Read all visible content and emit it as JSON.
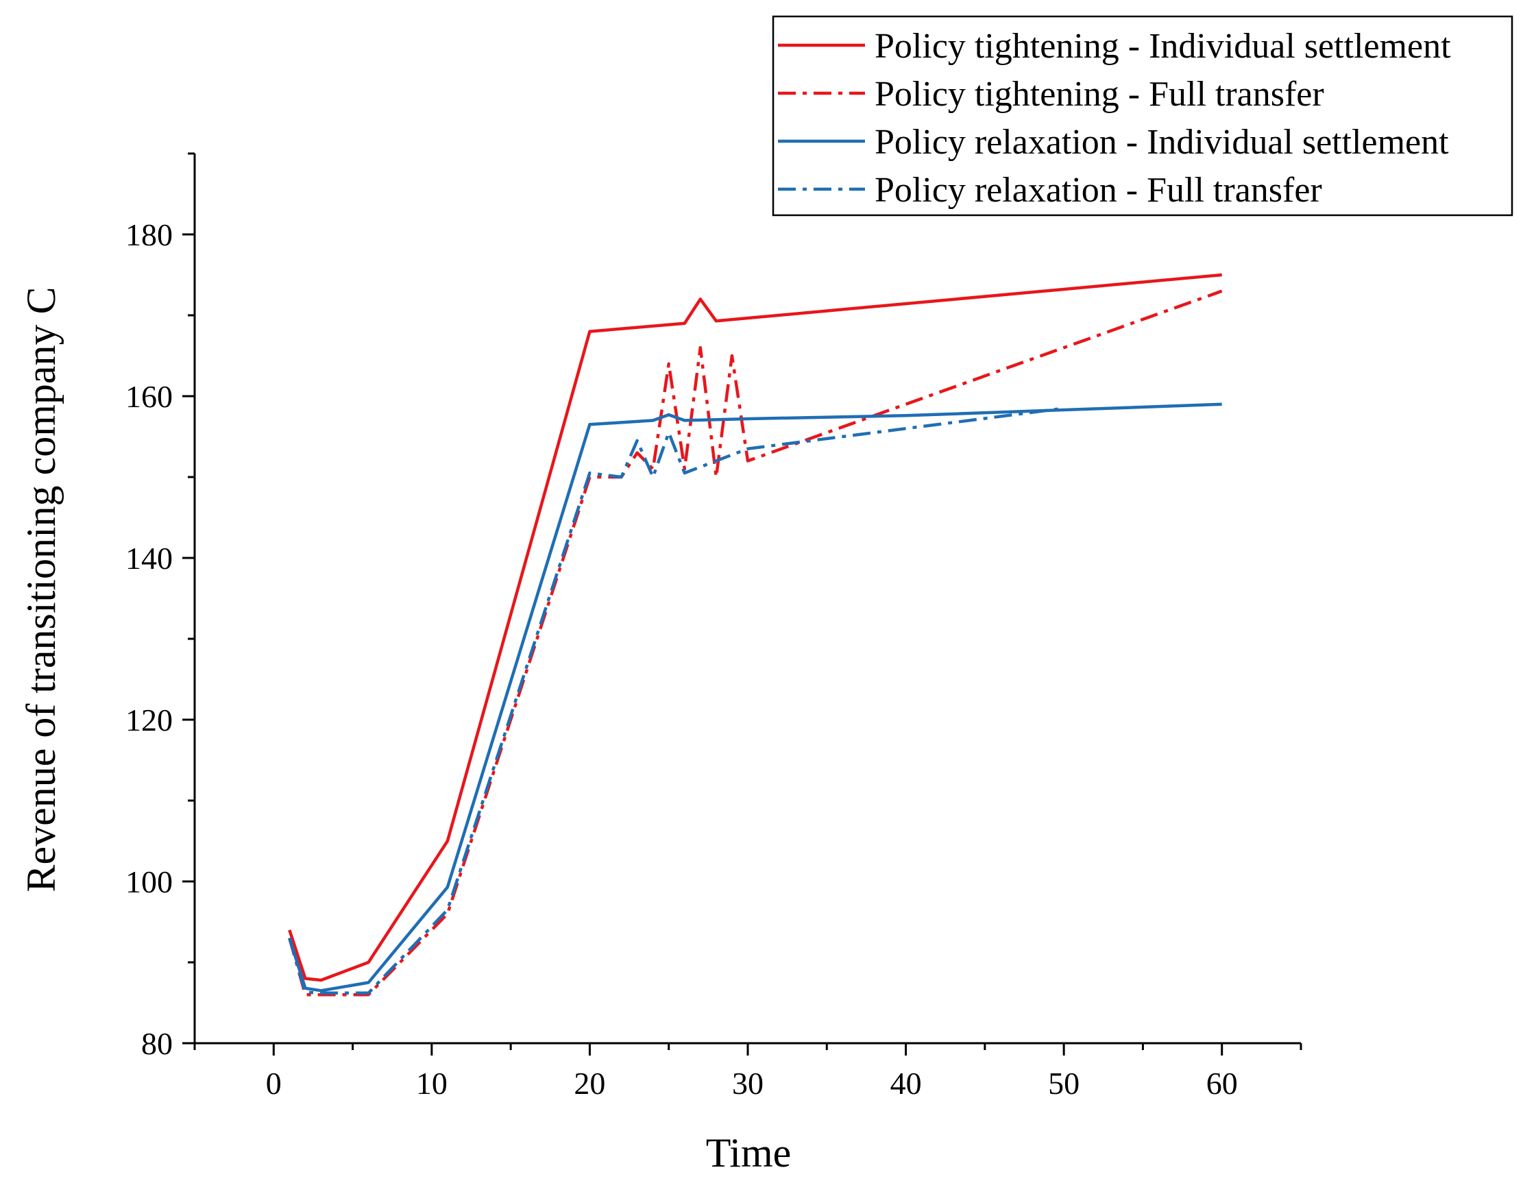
{
  "chart_data": {
    "type": "line",
    "title": "",
    "xlabel": "Time",
    "ylabel": "Revenue of transitioning company C",
    "xlim": [
      -5,
      65
    ],
    "ylim": [
      80,
      190
    ],
    "xticks": [
      0,
      10,
      20,
      30,
      40,
      50,
      60
    ],
    "xtick_labels": [
      "0",
      "10",
      "20",
      "30",
      "40",
      "50",
      "60"
    ],
    "yticks": [
      80,
      100,
      120,
      140,
      160,
      180
    ],
    "ytick_labels": [
      "80",
      "100",
      "120",
      "140",
      "160",
      "180"
    ],
    "grid": false,
    "legend_position": "top-right",
    "series": [
      {
        "name": "Policy tightening - Individual settlement",
        "color": "#e8161b",
        "style": "solid",
        "x": [
          1,
          2,
          3,
          6,
          11,
          20,
          26,
          27,
          28,
          60
        ],
        "y": [
          94,
          88,
          87.8,
          90,
          105,
          168,
          169,
          172,
          169.3,
          175
        ]
      },
      {
        "name": "Policy tightening - Full transfer",
        "color": "#e8161b",
        "style": "dashdot",
        "x": [
          1,
          2,
          3,
          6,
          11,
          20,
          21,
          22,
          23,
          24,
          25,
          26,
          27,
          28,
          29,
          30,
          60
        ],
        "y": [
          93,
          86,
          86,
          86,
          96,
          150,
          150,
          150,
          153,
          151,
          164,
          151,
          166,
          150,
          165,
          152,
          173
        ]
      },
      {
        "name": "Policy relaxation - Individual settlement",
        "color": "#1f6eb4",
        "style": "solid",
        "x": [
          1,
          2,
          3,
          6,
          11,
          20,
          24,
          25,
          26,
          30,
          40,
          60
        ],
        "y": [
          93,
          86.8,
          86.5,
          87.5,
          99.3,
          156.5,
          157,
          157.7,
          157,
          157.2,
          157.6,
          159
        ]
      },
      {
        "name": "Policy relaxation - Full transfer",
        "color": "#1f6eb4",
        "style": "dashdot",
        "x": [
          1,
          2,
          3,
          6,
          11,
          20,
          22,
          23,
          24,
          25,
          26,
          30,
          50
        ],
        "y": [
          93,
          86.3,
          86.2,
          86.2,
          96.5,
          150.5,
          150,
          154.5,
          150,
          155.5,
          150.5,
          153.5,
          158.5
        ]
      }
    ]
  }
}
